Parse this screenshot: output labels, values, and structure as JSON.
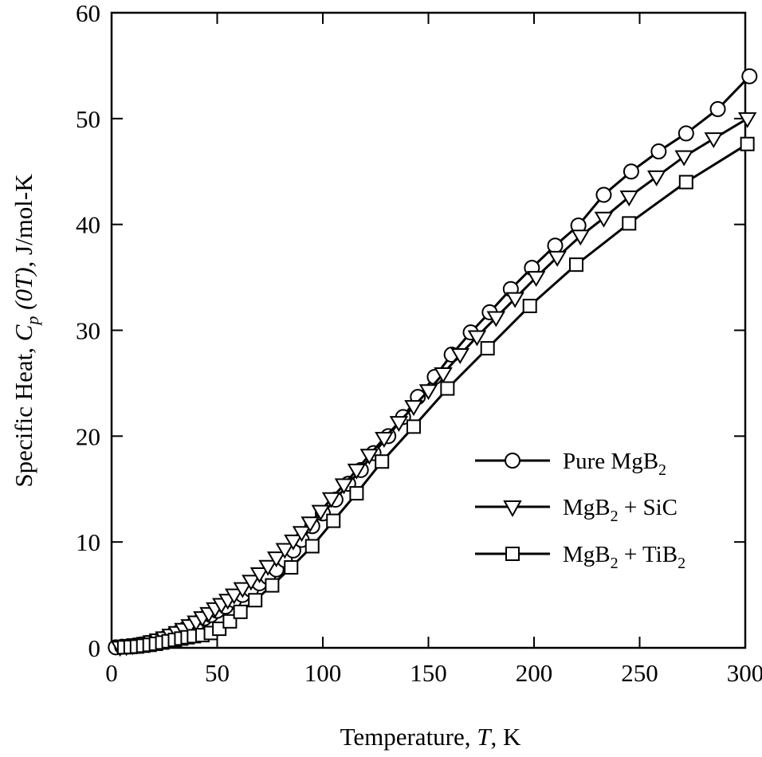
{
  "chart_data": {
    "type": "line",
    "title": "",
    "xlabel": {
      "prefix": "Temperature, ",
      "var": "T",
      "suffix": ", K"
    },
    "ylabel": {
      "prefix": "Specific Heat, ",
      "var": "C",
      "sub": "p",
      "cond": " (0T)",
      "suffix": ", J/mol-K"
    },
    "xlim": [
      0,
      300
    ],
    "ylim": [
      0,
      60
    ],
    "x_ticks": [
      0,
      50,
      100,
      150,
      200,
      250,
      300
    ],
    "y_ticks": [
      0,
      10,
      20,
      30,
      40,
      50,
      60
    ],
    "grid": false,
    "legend_position": "lower-right",
    "series": [
      {
        "name": "Pure MgB",
        "name_sub": "2",
        "name_rest": "",
        "marker": "circle",
        "x": [
          2,
          5,
          8,
          11,
          14,
          17,
          20,
          23,
          26,
          29,
          32,
          35,
          38,
          41,
          44,
          47,
          50,
          54,
          58,
          62,
          66,
          70,
          74,
          78,
          82,
          86,
          90,
          95,
          100,
          106,
          112,
          118,
          124,
          131,
          138,
          145,
          153,
          161,
          170,
          179,
          189,
          199,
          210,
          221,
          233,
          246,
          259,
          272,
          287,
          302
        ],
        "y": [
          0.05,
          0.1,
          0.15,
          0.22,
          0.32,
          0.45,
          0.6,
          0.8,
          1.0,
          1.25,
          1.5,
          1.8,
          2.1,
          2.4,
          2.8,
          3.1,
          3.5,
          3.9,
          4.5,
          5.0,
          5.5,
          6.1,
          6.7,
          7.4,
          8.3,
          9.2,
          10.2,
          11.5,
          12.7,
          14.0,
          15.5,
          16.8,
          18.4,
          20.0,
          21.8,
          23.7,
          25.6,
          27.7,
          29.8,
          31.7,
          33.9,
          35.9,
          38.0,
          39.9,
          42.8,
          45.0,
          46.9,
          48.6,
          50.9,
          54.0
        ]
      },
      {
        "name": "MgB",
        "name_sub": "2",
        "name_rest": " + SiC",
        "marker": "triangle-down",
        "x": [
          4,
          7,
          10,
          13,
          16,
          19,
          22,
          25,
          28,
          31,
          34,
          37,
          40,
          43,
          46,
          49,
          52,
          55,
          58,
          62,
          66,
          70,
          74,
          78,
          82,
          86,
          90,
          94,
          99,
          104,
          110,
          116,
          122,
          129,
          136,
          143,
          150,
          157,
          165,
          173,
          182,
          191,
          201,
          211,
          222,
          233,
          245,
          258,
          271,
          285,
          301
        ],
        "y": [
          0.05,
          0.12,
          0.2,
          0.3,
          0.42,
          0.58,
          0.75,
          0.95,
          1.2,
          1.45,
          1.75,
          2.1,
          2.45,
          2.85,
          3.25,
          3.7,
          4.1,
          4.5,
          5.0,
          5.6,
          6.3,
          7.0,
          7.7,
          8.5,
          9.3,
          10.1,
          10.9,
          11.8,
          12.9,
          14.1,
          15.4,
          16.8,
          18.2,
          19.8,
          21.3,
          22.8,
          24.3,
          25.9,
          27.7,
          29.4,
          31.2,
          33.0,
          35.0,
          36.9,
          38.9,
          40.6,
          42.6,
          44.5,
          46.4,
          48.1,
          50.0
        ]
      },
      {
        "name": "MgB",
        "name_sub": "2",
        "name_rest": " + TiB",
        "name_sub2": "2",
        "marker": "square",
        "x": [
          6,
          9,
          12,
          15,
          18,
          21,
          24,
          27,
          30,
          33,
          36,
          39,
          43,
          47,
          51,
          56,
          61,
          68,
          76,
          85,
          95,
          105,
          116,
          128,
          143,
          159,
          178,
          198,
          220,
          245,
          272,
          301
        ],
        "y": [
          0.05,
          0.08,
          0.12,
          0.2,
          0.28,
          0.38,
          0.5,
          0.62,
          0.75,
          0.88,
          1.0,
          1.1,
          1.2,
          1.4,
          1.8,
          2.5,
          3.4,
          4.5,
          5.9,
          7.6,
          9.6,
          12.0,
          14.6,
          17.6,
          20.9,
          24.5,
          28.3,
          32.3,
          36.2,
          40.1,
          44.0,
          47.6
        ]
      }
    ]
  }
}
